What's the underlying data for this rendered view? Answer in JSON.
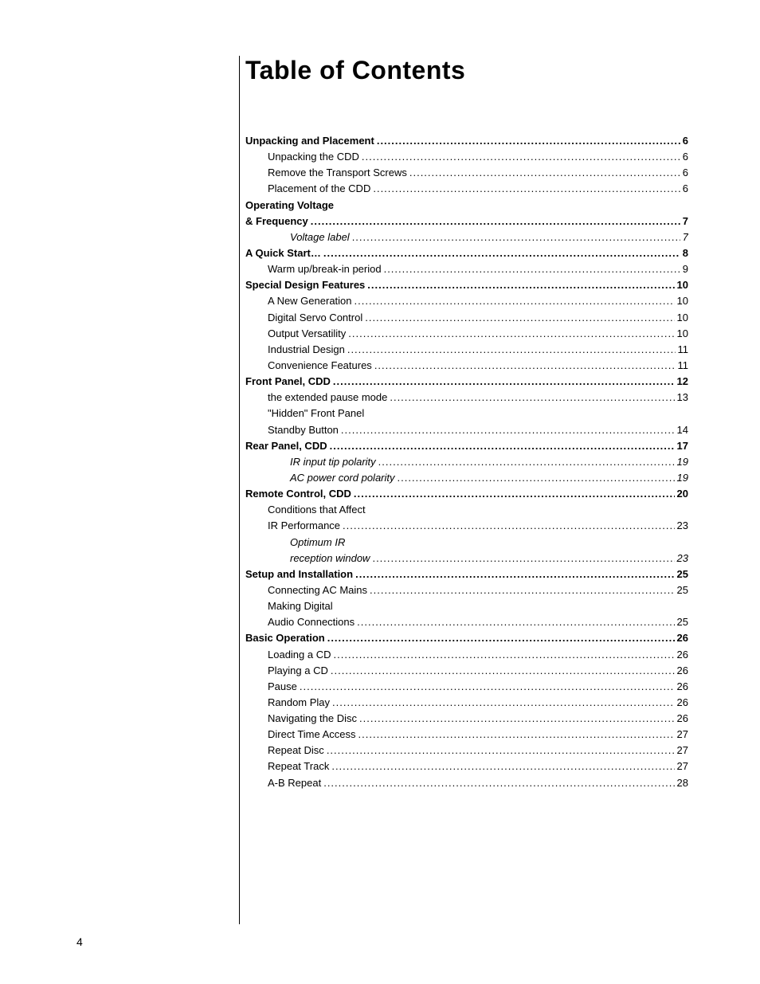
{
  "title": "Table of Contents",
  "pageNumber": "4",
  "entries": [
    {
      "label": "Unpacking and Placement",
      "page": "6",
      "indent": 0,
      "bold": true,
      "italic": false,
      "boldLeader": true
    },
    {
      "label": "Unpacking the CDD",
      "page": "6",
      "indent": 1,
      "bold": false,
      "italic": false
    },
    {
      "label": "Remove the Transport Screws",
      "page": "6",
      "indent": 1,
      "bold": false,
      "italic": false
    },
    {
      "label": "Placement of the CDD",
      "page": "6",
      "indent": 1,
      "bold": false,
      "italic": false
    },
    {
      "label": "Operating Voltage",
      "indent": 0,
      "bold": true,
      "italic": false,
      "noLeader": true
    },
    {
      "label": "&  Frequency",
      "page": "7",
      "indent": 0,
      "bold": true,
      "italic": false,
      "boldLeader": true
    },
    {
      "label": "Voltage label",
      "page": "7",
      "indent": 2,
      "bold": false,
      "italic": true
    },
    {
      "label": "A Quick Start…",
      "page": "8",
      "indent": 0,
      "bold": true,
      "italic": false,
      "boldLeader": true
    },
    {
      "label": "Warm up/break-in period",
      "page": "9",
      "indent": 1,
      "bold": false,
      "italic": false
    },
    {
      "label": "Special Design Features",
      "page": "10",
      "indent": 0,
      "bold": true,
      "italic": false,
      "boldLeader": true
    },
    {
      "label": "A New Generation",
      "page": "10",
      "indent": 1,
      "bold": false,
      "italic": false
    },
    {
      "label": "Digital Servo Control",
      "page": "10",
      "indent": 1,
      "bold": false,
      "italic": false
    },
    {
      "label": "Output Versatility",
      "page": "10",
      "indent": 1,
      "bold": false,
      "italic": false
    },
    {
      "label": "Industrial Design",
      "page": "11",
      "indent": 1,
      "bold": false,
      "italic": false
    },
    {
      "label": "Convenience Features",
      "page": "11",
      "indent": 1,
      "bold": false,
      "italic": false
    },
    {
      "label": "Front Panel, CDD",
      "page": "12",
      "indent": 0,
      "bold": true,
      "italic": false,
      "boldLeader": true
    },
    {
      "label": "the extended pause mode",
      "page": "13",
      "indent": 1,
      "bold": false,
      "italic": false
    },
    {
      "label": "\"Hidden\"  Front  Panel",
      "indent": 1,
      "bold": false,
      "italic": false,
      "noLeader": true
    },
    {
      "label": "Standby Button",
      "page": "14",
      "indent": 1,
      "bold": false,
      "italic": false
    },
    {
      "label": "Rear Panel, CDD",
      "page": "17",
      "indent": 0,
      "bold": true,
      "italic": false,
      "boldLeader": true
    },
    {
      "label": "IR input tip polarity",
      "page": "19",
      "indent": 2,
      "bold": false,
      "italic": true
    },
    {
      "label": "AC power cord polarity",
      "page": "19",
      "indent": 2,
      "bold": false,
      "italic": true
    },
    {
      "label": "Remote Control, CDD",
      "page": "20",
      "indent": 0,
      "bold": true,
      "italic": false,
      "boldLeader": true
    },
    {
      "label": "Conditions that Affect",
      "indent": 1,
      "bold": false,
      "italic": false,
      "noLeader": true
    },
    {
      "label": "IR Performance",
      "page": "23",
      "indent": 1,
      "bold": false,
      "italic": false
    },
    {
      "label": "Optimum IR",
      "indent": 2,
      "bold": false,
      "italic": true,
      "noLeader": true
    },
    {
      "label": "reception  window",
      "page": "23",
      "indent": 2,
      "bold": false,
      "italic": true
    },
    {
      "label": "Setup and Installation",
      "page": "25",
      "indent": 0,
      "bold": true,
      "italic": false,
      "boldLeader": true
    },
    {
      "label": "Connecting AC Mains",
      "page": "25",
      "indent": 1,
      "bold": false,
      "italic": false
    },
    {
      "label": "Making Digital",
      "indent": 1,
      "bold": false,
      "italic": false,
      "noLeader": true
    },
    {
      "label": "Audio Connections",
      "page": "25",
      "indent": 1,
      "bold": false,
      "italic": false
    },
    {
      "label": "Basic Operation",
      "page": "26",
      "indent": 0,
      "bold": true,
      "italic": false,
      "boldLeader": true
    },
    {
      "label": "Loading a CD",
      "page": "26",
      "indent": 1,
      "bold": false,
      "italic": false
    },
    {
      "label": "Playing a CD",
      "page": "26",
      "indent": 1,
      "bold": false,
      "italic": false
    },
    {
      "label": "Pause",
      "page": "26",
      "indent": 1,
      "bold": false,
      "italic": false
    },
    {
      "label": "Random Play",
      "page": "26",
      "indent": 1,
      "bold": false,
      "italic": false
    },
    {
      "label": "Navigating the Disc",
      "page": "26",
      "indent": 1,
      "bold": false,
      "italic": false
    },
    {
      "label": "Direct Time Access",
      "page": "27",
      "indent": 1,
      "bold": false,
      "italic": false
    },
    {
      "label": "Repeat Disc",
      "page": "27",
      "indent": 1,
      "bold": false,
      "italic": false
    },
    {
      "label": "Repeat Track",
      "page": "27",
      "indent": 1,
      "bold": false,
      "italic": false
    },
    {
      "label": "A-B Repeat",
      "page": "28",
      "indent": 1,
      "bold": false,
      "italic": false
    }
  ]
}
